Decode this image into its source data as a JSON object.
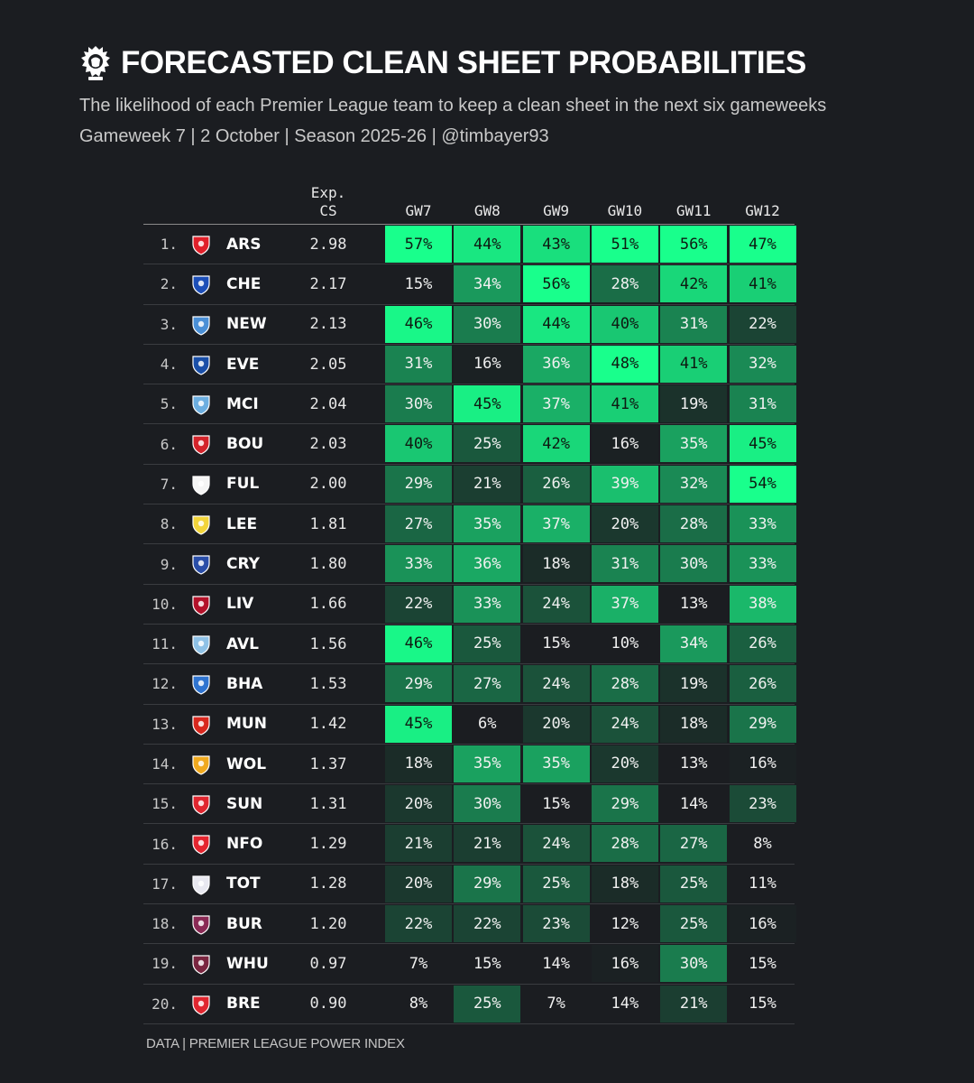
{
  "title": "FORECASTED CLEAN SHEET PROBABILITIES",
  "subtitle": "The likelihood of each Premier League team to keep a clean sheet in the next six gameweeks",
  "subtitle2": "Gameweek 7 | 2 October | Season 2025-26 | @timbayer93",
  "footer": "DATA | PREMIER LEAGUE POWER INDEX",
  "chart_data": {
    "type": "table",
    "columns": {
      "exp_cs_line1": "Exp.",
      "exp_cs_line2": "CS",
      "gameweeks": [
        "GW7",
        "GW8",
        "GW9",
        "GW10",
        "GW11",
        "GW12"
      ]
    },
    "colors": {
      "background": "#1b1d21",
      "cell_low": "#1b1d21",
      "cell_high": "#19ff8c"
    },
    "rows": [
      {
        "rank": "1.",
        "team": "ARS",
        "crest_icon": "arsenal-crest-icon",
        "crest_color": "#e0202a",
        "exp_cs": "2.98",
        "values": [
          57,
          44,
          43,
          51,
          56,
          47
        ]
      },
      {
        "rank": "2.",
        "team": "CHE",
        "crest_icon": "chelsea-crest-icon",
        "crest_color": "#1d4fb8",
        "exp_cs": "2.17",
        "values": [
          15,
          34,
          56,
          28,
          42,
          41
        ]
      },
      {
        "rank": "3.",
        "team": "NEW",
        "crest_icon": "newcastle-crest-icon",
        "crest_color": "#4a8fd6",
        "exp_cs": "2.13",
        "values": [
          46,
          30,
          44,
          40,
          31,
          22
        ]
      },
      {
        "rank": "4.",
        "team": "EVE",
        "crest_icon": "everton-crest-icon",
        "crest_color": "#1a4fa8",
        "exp_cs": "2.05",
        "values": [
          31,
          16,
          36,
          48,
          41,
          32
        ]
      },
      {
        "rank": "5.",
        "team": "MCI",
        "crest_icon": "man-city-crest-icon",
        "crest_color": "#6caee0",
        "exp_cs": "2.04",
        "values": [
          30,
          45,
          37,
          41,
          19,
          31
        ]
      },
      {
        "rank": "6.",
        "team": "BOU",
        "crest_icon": "bournemouth-crest-icon",
        "crest_color": "#d3242b",
        "exp_cs": "2.03",
        "values": [
          40,
          25,
          42,
          16,
          35,
          45
        ]
      },
      {
        "rank": "7.",
        "team": "FUL",
        "crest_icon": "fulham-crest-icon",
        "crest_color": "#f5f5f5",
        "exp_cs": "2.00",
        "values": [
          29,
          21,
          26,
          39,
          32,
          54
        ]
      },
      {
        "rank": "8.",
        "team": "LEE",
        "crest_icon": "leeds-crest-icon",
        "crest_color": "#f2d43a",
        "exp_cs": "1.81",
        "values": [
          27,
          35,
          37,
          20,
          28,
          33
        ]
      },
      {
        "rank": "9.",
        "team": "CRY",
        "crest_icon": "crystal-palace-crest-icon",
        "crest_color": "#2a4ea8",
        "exp_cs": "1.80",
        "values": [
          33,
          36,
          18,
          31,
          30,
          33
        ]
      },
      {
        "rank": "10.",
        "team": "LIV",
        "crest_icon": "liverpool-crest-icon",
        "crest_color": "#b3122a",
        "exp_cs": "1.66",
        "values": [
          22,
          33,
          24,
          37,
          13,
          38
        ]
      },
      {
        "rank": "11.",
        "team": "AVL",
        "crest_icon": "aston-villa-crest-icon",
        "crest_color": "#8ec1e6",
        "exp_cs": "1.56",
        "values": [
          46,
          25,
          15,
          10,
          34,
          26
        ]
      },
      {
        "rank": "12.",
        "team": "BHA",
        "crest_icon": "brighton-crest-icon",
        "crest_color": "#2f74d0",
        "exp_cs": "1.53",
        "values": [
          29,
          27,
          24,
          28,
          19,
          26
        ]
      },
      {
        "rank": "13.",
        "team": "MUN",
        "crest_icon": "man-united-crest-icon",
        "crest_color": "#d8281e",
        "exp_cs": "1.42",
        "values": [
          45,
          6,
          20,
          24,
          18,
          29
        ]
      },
      {
        "rank": "14.",
        "team": "WOL",
        "crest_icon": "wolves-crest-icon",
        "crest_color": "#f0a91e",
        "exp_cs": "1.37",
        "values": [
          18,
          35,
          35,
          20,
          13,
          16
        ]
      },
      {
        "rank": "15.",
        "team": "SUN",
        "crest_icon": "sunderland-crest-icon",
        "crest_color": "#e0262f",
        "exp_cs": "1.31",
        "values": [
          20,
          30,
          15,
          29,
          14,
          23
        ]
      },
      {
        "rank": "16.",
        "team": "NFO",
        "crest_icon": "nottingham-forest-crest-icon",
        "crest_color": "#e4252f",
        "exp_cs": "1.29",
        "values": [
          21,
          21,
          24,
          28,
          27,
          8
        ]
      },
      {
        "rank": "17.",
        "team": "TOT",
        "crest_icon": "tottenham-crest-icon",
        "crest_color": "#e8e8f0",
        "exp_cs": "1.28",
        "values": [
          20,
          29,
          25,
          18,
          25,
          11
        ]
      },
      {
        "rank": "18.",
        "team": "BUR",
        "crest_icon": "burnley-crest-icon",
        "crest_color": "#8a2a55",
        "exp_cs": "1.20",
        "values": [
          22,
          22,
          23,
          12,
          25,
          16
        ]
      },
      {
        "rank": "19.",
        "team": "WHU",
        "crest_icon": "west-ham-crest-icon",
        "crest_color": "#7a2640",
        "exp_cs": "0.97",
        "values": [
          7,
          15,
          14,
          16,
          30,
          15
        ]
      },
      {
        "rank": "20.",
        "team": "BRE",
        "crest_icon": "brentford-crest-icon",
        "crest_color": "#e0262f",
        "exp_cs": "0.90",
        "values": [
          8,
          25,
          7,
          14,
          21,
          15
        ]
      }
    ]
  }
}
